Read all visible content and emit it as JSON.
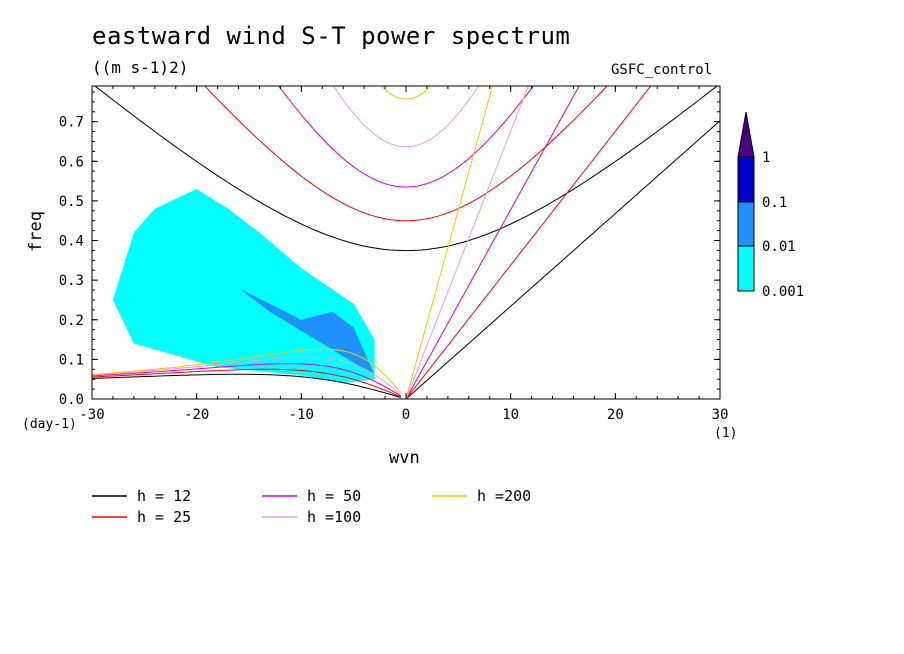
{
  "chart_data": {
    "type": "heatmap",
    "title": "eastward wind S-T power spectrum",
    "subtitle": "((m s-1)2)",
    "experiment": "GSFC_control",
    "xlabel": "wvn",
    "xunits": "(1)",
    "ylabel": "freq",
    "yunits": "(day-1)",
    "xlim": [
      -30,
      30
    ],
    "ylim": [
      0,
      0.79
    ],
    "xticks": [
      "-30",
      "-20",
      "-10",
      "0",
      "10",
      "20",
      "30"
    ],
    "yticks": [
      "0.0",
      "0.1",
      "0.2",
      "0.3",
      "0.4",
      "0.5",
      "0.6",
      "0.7"
    ],
    "colorbar": {
      "labels": [
        "1",
        "0.1",
        "0.01",
        "0.001"
      ],
      "levels": [
        0.001,
        0.01,
        0.1,
        1
      ],
      "colors": [
        "#00ffff",
        "#1e90ff",
        "#0000cd",
        "#4b0082"
      ]
    },
    "power_region": {
      "outer_0.001": [
        [
          -26,
          0.42
        ],
        [
          -24,
          0.48
        ],
        [
          -20,
          0.53
        ],
        [
          -17,
          0.48
        ],
        [
          -14,
          0.42
        ],
        [
          -10,
          0.33
        ],
        [
          -5,
          0.24
        ],
        [
          -3,
          0.15
        ],
        [
          -3,
          0.05
        ],
        [
          -6,
          0.04
        ],
        [
          -10,
          0.06
        ],
        [
          -18,
          0.08
        ],
        [
          -26,
          0.14
        ],
        [
          -28,
          0.25
        ]
      ],
      "patches_0.01": [
        [
          -10,
          0.2
        ],
        [
          -7,
          0.22
        ],
        [
          -5,
          0.18
        ],
        [
          -4,
          0.12
        ],
        [
          -3,
          0.06
        ],
        [
          -13,
          0.22
        ],
        [
          -16,
          0.28
        ]
      ]
    },
    "series": [
      {
        "name": "h = 12",
        "color": "#000000"
      },
      {
        "name": "h = 25",
        "color": "#ff0000"
      },
      {
        "name": "h = 50",
        "color": "#e000c0"
      },
      {
        "name": "h =100",
        "color": "#e0a0e0"
      },
      {
        "name": "h =200",
        "color": "#f0c800"
      }
    ]
  }
}
